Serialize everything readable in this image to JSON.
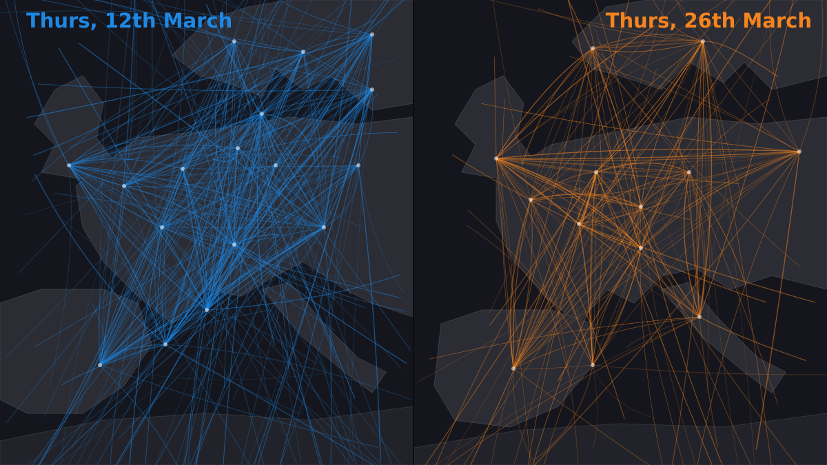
{
  "panels": [
    {
      "title": "Thurs, 12th March",
      "color": "#1e88e5"
    },
    {
      "title": "Thurs, 26th March",
      "color": "#f5841f"
    }
  ]
}
